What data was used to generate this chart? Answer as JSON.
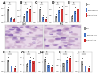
{
  "background": "#ffffff",
  "gray_color": "#909090",
  "blue_color": "#4472c4",
  "red_color": "#cc2222",
  "histo_bg": "#e8d8e8",
  "histo_cell_light": "#c8a8c8",
  "histo_cell_dark": "#7040a0",
  "top_plots": [
    {
      "label": "A",
      "data": [
        {
          "y": [
            0.85,
            0.92,
            1.05
          ],
          "color": "#909090"
        },
        {
          "y": [
            0.22,
            0.28,
            0.35
          ],
          "color": "#4472c4"
        },
        {
          "y": [
            0.18,
            0.25,
            0.32
          ],
          "color": "#cc2222"
        }
      ],
      "ylim": [
        0,
        1.4
      ],
      "yticks": [
        0,
        0.5,
        1.0
      ]
    },
    {
      "label": "B",
      "data": [
        {
          "y": [
            0.4,
            0.5,
            0.6
          ],
          "color": "#909090"
        },
        {
          "y": [
            0.75,
            0.95,
            1.15
          ],
          "color": "#4472c4"
        },
        {
          "y": [
            0.85,
            1.05,
            1.25
          ],
          "color": "#cc2222"
        }
      ],
      "ylim": [
        0,
        1.6
      ],
      "yticks": [
        0,
        0.5,
        1.0,
        1.5
      ]
    },
    {
      "label": "C",
      "data": [
        {
          "y": [
            0.6,
            0.72,
            0.82
          ],
          "color": "#909090"
        },
        {
          "y": [
            0.18,
            0.28,
            0.38
          ],
          "color": "#4472c4"
        },
        {
          "y": [
            0.12,
            0.2,
            0.3
          ],
          "color": "#cc2222"
        }
      ],
      "ylim": [
        0,
        1.1
      ],
      "yticks": [
        0,
        0.5,
        1.0
      ]
    },
    {
      "label": "D",
      "data": [
        {
          "y": [
            0.38,
            0.48,
            0.58
          ],
          "color": "#909090"
        },
        {
          "y": [
            0.7,
            0.9,
            1.1
          ],
          "color": "#4472c4"
        },
        {
          "y": [
            0.8,
            1.0,
            1.2
          ],
          "color": "#cc2222"
        }
      ],
      "ylim": [
        0,
        1.5
      ],
      "yticks": [
        0,
        0.5,
        1.0
      ]
    },
    {
      "label": "E",
      "data": [
        {
          "y": [
            0.28,
            0.38,
            0.48
          ],
          "color": "#909090"
        },
        {
          "y": [
            0.55,
            0.75,
            0.95
          ],
          "color": "#4472c4"
        },
        {
          "y": [
            0.65,
            0.85,
            1.05
          ],
          "color": "#cc2222"
        }
      ],
      "ylim": [
        0,
        1.3
      ],
      "yticks": [
        0,
        0.5,
        1.0
      ]
    }
  ],
  "bottom_plots": [
    {
      "label": "F",
      "data": [
        {
          "y": [
            0.52,
            0.62,
            0.72
          ],
          "color": "#909090"
        },
        {
          "y": [
            0.2,
            0.28,
            0.38
          ],
          "color": "#4472c4"
        },
        {
          "y": [
            0.1,
            0.18,
            0.28
          ],
          "color": "#cc2222"
        }
      ],
      "ylim": [
        0,
        1.0
      ],
      "yticks": [
        0,
        0.5
      ]
    },
    {
      "label": "G",
      "data": [
        {
          "y": [
            0.42,
            0.52,
            0.62
          ],
          "color": "#909090"
        },
        {
          "y": [
            0.65,
            0.85,
            1.05
          ],
          "color": "#4472c4"
        },
        {
          "y": [
            0.6,
            0.8,
            1.0
          ],
          "color": "#cc2222"
        }
      ],
      "ylim": [
        0,
        1.4
      ],
      "yticks": [
        0,
        0.5,
        1.0
      ]
    },
    {
      "label": "H",
      "data": [
        {
          "y": [
            0.58,
            0.7,
            0.8
          ],
          "color": "#909090"
        },
        {
          "y": [
            0.28,
            0.38,
            0.48
          ],
          "color": "#4472c4"
        },
        {
          "y": [
            0.18,
            0.28,
            0.38
          ],
          "color": "#cc2222"
        }
      ],
      "ylim": [
        0,
        1.1
      ],
      "yticks": [
        0,
        0.5,
        1.0
      ]
    },
    {
      "label": "I",
      "data": [
        {
          "y": [
            0.48,
            0.68,
            0.88
          ],
          "color": "#909090"
        },
        {
          "y": [
            0.78,
            0.98,
            1.18
          ],
          "color": "#4472c4"
        },
        {
          "y": [
            0.88,
            1.08,
            1.28
          ],
          "color": "#cc2222"
        }
      ],
      "ylim": [
        0,
        1.6
      ],
      "yticks": [
        0,
        0.5,
        1.0,
        1.5
      ]
    },
    {
      "label": "J",
      "data": [
        {
          "y": [
            0.4,
            0.55,
            0.7
          ],
          "color": "#909090"
        },
        {
          "y": [
            0.18,
            0.28,
            0.38
          ],
          "color": "#4472c4"
        },
        {
          "y": [
            0.1,
            0.18,
            0.28
          ],
          "color": "#cc2222"
        }
      ],
      "ylim": [
        0,
        1.0
      ],
      "yticks": [
        0,
        0.5
      ]
    }
  ],
  "histo_rows": 2,
  "histo_cols": 2,
  "histo_titles": [
    "Ctrl",
    "KO"
  ],
  "legend_names": [
    "Ctrl",
    "NPHS2-Cre",
    "PIK3CA KO"
  ],
  "legend_colors": [
    "#909090",
    "#4472c4",
    "#cc2222"
  ]
}
